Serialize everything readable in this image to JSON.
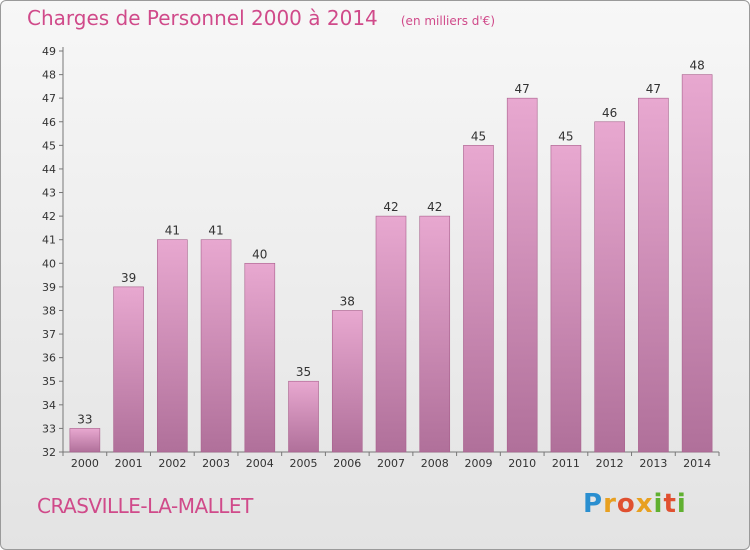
{
  "chart_data": {
    "type": "bar",
    "title": "Charges de Personnel 2000 à 2014",
    "subtitle": "(en milliers d'€)",
    "categories": [
      "2000",
      "2001",
      "2002",
      "2003",
      "2004",
      "2005",
      "2006",
      "2007",
      "2008",
      "2009",
      "2010",
      "2011",
      "2012",
      "2013",
      "2014"
    ],
    "values": [
      33,
      39,
      41,
      41,
      40,
      35,
      38,
      42,
      42,
      45,
      47,
      45,
      46,
      47,
      48
    ],
    "ylim": [
      32,
      49
    ],
    "yticks": [
      32,
      33,
      34,
      35,
      36,
      37,
      38,
      39,
      40,
      41,
      42,
      43,
      44,
      45,
      46,
      47,
      48,
      49
    ],
    "xlabel": "",
    "ylabel": "",
    "grid": false,
    "bar_color_top": "#e8a8d0",
    "bar_color_bottom": "#b0709a"
  },
  "commune": "CRASVILLE-LA-MALLET",
  "logo": {
    "letters": [
      "P",
      "r",
      "o",
      "x",
      "i",
      "t",
      "i"
    ]
  },
  "colors": {
    "accent": "#d04a8a"
  }
}
